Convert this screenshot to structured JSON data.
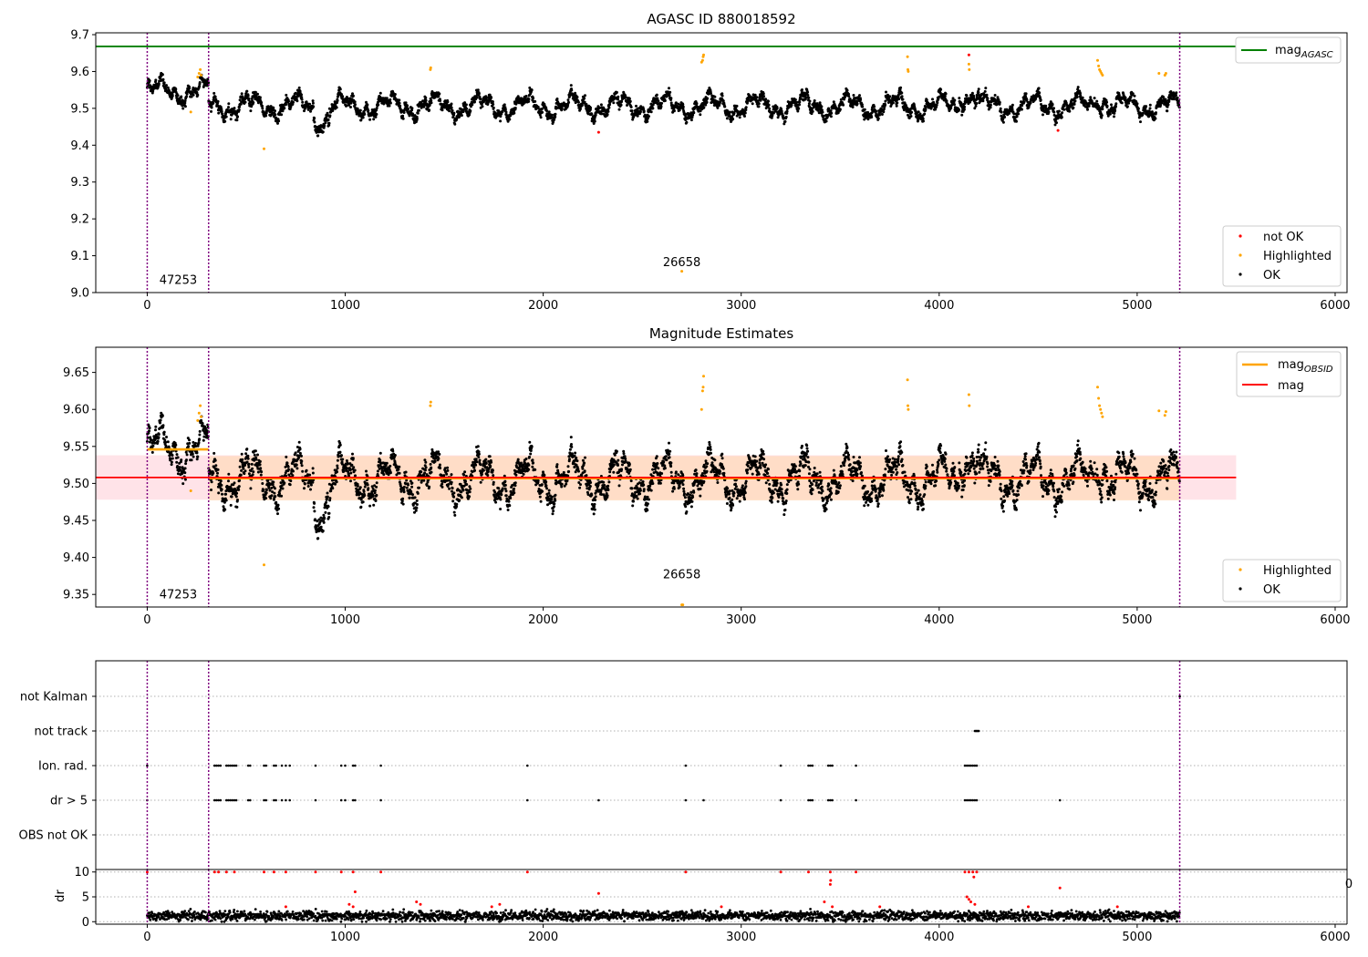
{
  "figure": {
    "background": "#ffffff",
    "colors": {
      "ok": "#000000",
      "not_ok": "#ff0000",
      "highlighted": "#ffa500",
      "mag_agasc": "#008000",
      "mag": "#ff0000",
      "mag_obsid": "#ffa500",
      "obsid_boundary": "#800080",
      "band_mag": "#ffc0cb",
      "band_obsid": "#ffdab9",
      "dr": "#000000",
      "dr_flagged": "#ff0000"
    }
  },
  "chart_data": [
    {
      "type": "scatter",
      "title": "AGASC ID 880018592",
      "xlabel": "",
      "ylabel": "",
      "xlim": [
        -260,
        6060
      ],
      "ylim": [
        9.0,
        9.705
      ],
      "xticks": [
        "0",
        "1000",
        "2000",
        "3000",
        "4000",
        "5000",
        "6000"
      ],
      "xtick_values": [
        0,
        1000,
        2000,
        3000,
        4000,
        5000,
        6000
      ],
      "yticks": [
        "9.0",
        "9.1",
        "9.2",
        "9.3",
        "9.4",
        "9.5",
        "9.6",
        "9.7"
      ],
      "ytick_values": [
        9.0,
        9.1,
        9.2,
        9.3,
        9.4,
        9.5,
        9.6,
        9.7
      ],
      "grid": false,
      "lines": [
        {
          "name": "mag",
          "subscript": "AGASC",
          "y": 9.668,
          "x_range": [
            -260,
            5500
          ]
        }
      ],
      "obsid_boundaries_x": [
        0,
        310,
        5215
      ],
      "annotations": [
        {
          "text": "47253",
          "x": 155,
          "y": 9.023
        },
        {
          "text": "26658",
          "x": 2700,
          "y": 9.072
        }
      ],
      "legends": [
        {
          "placement": "upper-right",
          "entries": [
            {
              "label": "mag",
              "subscript": "AGASC",
              "kind": "line"
            }
          ]
        },
        {
          "placement": "lower-right",
          "entries": [
            {
              "label": "not OK",
              "kind": "point"
            },
            {
              "label": "Highlighted",
              "kind": "point"
            },
            {
              "label": "OK",
              "kind": "point"
            }
          ]
        }
      ],
      "highlighted_points": [
        [
          220,
          9.49
        ],
        [
          255,
          9.585
        ],
        [
          262,
          9.595
        ],
        [
          268,
          9.605
        ],
        [
          272,
          9.59
        ],
        [
          590,
          9.39
        ],
        [
          1430,
          9.605
        ],
        [
          1432,
          9.61
        ],
        [
          2700,
          9.058
        ],
        [
          2800,
          9.625
        ],
        [
          2805,
          9.63
        ],
        [
          2808,
          9.64
        ],
        [
          2810,
          9.645
        ],
        [
          3840,
          9.64
        ],
        [
          3842,
          9.605
        ],
        [
          3844,
          9.6
        ],
        [
          4150,
          9.62
        ],
        [
          4152,
          9.605
        ],
        [
          4800,
          9.63
        ],
        [
          4805,
          9.615
        ],
        [
          4810,
          9.605
        ],
        [
          4815,
          9.6
        ],
        [
          4820,
          9.595
        ],
        [
          4825,
          9.59
        ],
        [
          5110,
          9.595
        ],
        [
          5140,
          9.59
        ],
        [
          5145,
          9.595
        ]
      ],
      "not_ok_points": [
        [
          2280,
          9.435
        ],
        [
          4150,
          9.645
        ],
        [
          4600,
          9.44
        ]
      ]
    },
    {
      "type": "scatter",
      "title": "Magnitude Estimates",
      "xlabel": "",
      "ylabel": "",
      "xlim": [
        -260,
        6060
      ],
      "ylim": [
        9.333,
        9.684
      ],
      "xticks": [
        "0",
        "1000",
        "2000",
        "3000",
        "4000",
        "5000",
        "6000"
      ],
      "xtick_values": [
        0,
        1000,
        2000,
        3000,
        4000,
        5000,
        6000
      ],
      "yticks": [
        "9.35",
        "9.40",
        "9.45",
        "9.50",
        "9.55",
        "9.60",
        "9.65"
      ],
      "ytick_values": [
        9.35,
        9.4,
        9.45,
        9.5,
        9.55,
        9.6,
        9.65
      ],
      "grid": false,
      "bands": [
        {
          "name": "mag",
          "y_range": [
            9.478,
            9.538
          ],
          "x_range": [
            -260,
            5500
          ]
        },
        {
          "name": "mag_obsid",
          "y_range": [
            9.477,
            9.537
          ],
          "x_range": [
            310,
            5215
          ]
        }
      ],
      "segments": [
        {
          "name": "mag",
          "subscript": "OBSID",
          "y": 9.546,
          "x_range": [
            0,
            310
          ]
        },
        {
          "name": "mag",
          "subscript": "OBSID",
          "y": 9.507,
          "x_range": [
            310,
            5215
          ]
        },
        {
          "name": "mag",
          "y": 9.508,
          "x_range": [
            -260,
            5500
          ]
        }
      ],
      "obsid_boundaries_x": [
        0,
        310,
        5215
      ],
      "annotations": [
        {
          "text": "47253",
          "x": 155,
          "y": 9.345
        },
        {
          "text": "26658",
          "x": 2700,
          "y": 9.372
        }
      ],
      "legends": [
        {
          "placement": "upper-right",
          "entries": [
            {
              "label": "mag",
              "subscript": "OBSID",
              "kind": "line"
            },
            {
              "label": "mag",
              "kind": "line"
            }
          ]
        },
        {
          "placement": "lower-right",
          "entries": [
            {
              "label": "Highlighted",
              "kind": "point"
            },
            {
              "label": "OK",
              "kind": "point"
            }
          ]
        }
      ],
      "highlighted_points": [
        [
          220,
          9.49
        ],
        [
          255,
          9.585
        ],
        [
          262,
          9.595
        ],
        [
          268,
          9.605
        ],
        [
          272,
          9.59
        ],
        [
          590,
          9.39
        ],
        [
          1430,
          9.605
        ],
        [
          1432,
          9.61
        ],
        [
          2700,
          9.336
        ],
        [
          2705,
          9.335
        ],
        [
          2800,
          9.6
        ],
        [
          2805,
          9.625
        ],
        [
          2808,
          9.63
        ],
        [
          2810,
          9.645
        ],
        [
          3840,
          9.64
        ],
        [
          3842,
          9.605
        ],
        [
          3844,
          9.6
        ],
        [
          4150,
          9.62
        ],
        [
          4152,
          9.605
        ],
        [
          4800,
          9.63
        ],
        [
          4805,
          9.615
        ],
        [
          4810,
          9.605
        ],
        [
          4815,
          9.6
        ],
        [
          4820,
          9.595
        ],
        [
          4825,
          9.59
        ],
        [
          5110,
          9.598
        ],
        [
          5140,
          9.592
        ],
        [
          5145,
          9.597
        ]
      ]
    },
    {
      "type": "scatter",
      "title": "",
      "xlabel": "",
      "ylabel": "",
      "xlim": [
        -260,
        6060
      ],
      "grid": true,
      "categories": [
        "not Kalman",
        "not track",
        "Ion. rad.",
        "dr > 5",
        "OBS not OK"
      ],
      "obsid_boundaries_x": [
        0,
        310,
        5215
      ],
      "flags": [
        {
          "category": "not Kalman",
          "x": [
            5215
          ]
        },
        {
          "category": "not track",
          "x": [
            4180,
            4185,
            4190,
            4195,
            4200
          ]
        },
        {
          "category": "Ion. rad.",
          "x": [
            0,
            340,
            350,
            360,
            370,
            400,
            410,
            420,
            430,
            440,
            450,
            510,
            520,
            590,
            600,
            640,
            650,
            680,
            700,
            720,
            850,
            980,
            1000,
            1040,
            1050,
            1180,
            1920,
            2720,
            3200,
            3340,
            3350,
            3360,
            3440,
            3450,
            3460,
            3580,
            4130,
            4140,
            4150,
            4160,
            4170,
            4180,
            4190
          ]
        },
        {
          "category": "dr > 5",
          "x": [
            0,
            340,
            350,
            360,
            370,
            400,
            410,
            420,
            430,
            440,
            450,
            510,
            520,
            590,
            600,
            640,
            650,
            680,
            700,
            720,
            850,
            980,
            1000,
            1040,
            1050,
            1180,
            1920,
            2280,
            2720,
            2810,
            3200,
            3340,
            3350,
            3360,
            3440,
            3450,
            3460,
            3580,
            4130,
            4140,
            4150,
            4160,
            4170,
            4180,
            4190,
            4610
          ]
        },
        {
          "category": "OBS not OK",
          "x": []
        }
      ]
    },
    {
      "type": "scatter",
      "title": "",
      "xlabel": "",
      "ylabel": "dr",
      "xlim": [
        -260,
        6060
      ],
      "ylim": [
        -0.5,
        10.5
      ],
      "xticks": [
        "0",
        "1000",
        "2000",
        "3000",
        "4000",
        "5000",
        "6000"
      ],
      "xtick_values": [
        0,
        1000,
        2000,
        3000,
        4000,
        5000,
        6000
      ],
      "yticks": [
        "0",
        "5",
        "10"
      ],
      "ytick_values": [
        0,
        5,
        10
      ],
      "grid": true,
      "clip_label": "0",
      "obsid_boundaries_x": [
        0,
        310,
        5215
      ],
      "flagged_points": [
        [
          0,
          10
        ],
        [
          340,
          10
        ],
        [
          360,
          10
        ],
        [
          400,
          10
        ],
        [
          440,
          10
        ],
        [
          590,
          10
        ],
        [
          640,
          10
        ],
        [
          700,
          10
        ],
        [
          850,
          10
        ],
        [
          980,
          10
        ],
        [
          1040,
          10
        ],
        [
          1180,
          10
        ],
        [
          1920,
          10
        ],
        [
          2720,
          10
        ],
        [
          3200,
          10
        ],
        [
          3340,
          10
        ],
        [
          3450,
          10
        ],
        [
          3580,
          10
        ],
        [
          4130,
          10
        ],
        [
          4150,
          10
        ],
        [
          4170,
          10
        ],
        [
          4190,
          10
        ],
        [
          1050,
          6
        ],
        [
          2280,
          5.7
        ],
        [
          4610,
          6.8
        ],
        [
          3450,
          7.5
        ],
        [
          3452,
          8.3
        ],
        [
          4175,
          9
        ],
        [
          4150,
          4.5
        ],
        [
          4160,
          4
        ],
        [
          4180,
          3.5
        ],
        [
          1020,
          3.5
        ],
        [
          1040,
          3
        ],
        [
          1360,
          4
        ],
        [
          1380,
          3.5
        ],
        [
          1740,
          3
        ],
        [
          1780,
          3.5
        ],
        [
          3420,
          4
        ],
        [
          3460,
          3
        ],
        [
          4140,
          5
        ],
        [
          700,
          3
        ],
        [
          2900,
          3
        ],
        [
          3700,
          3
        ],
        [
          4450,
          3
        ],
        [
          4900,
          3
        ]
      ]
    }
  ]
}
